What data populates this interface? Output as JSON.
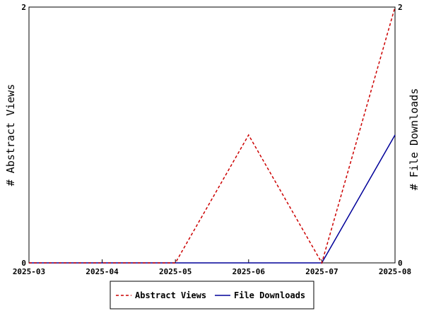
{
  "chart_data": {
    "type": "line",
    "x": [
      "2025-03",
      "2025-04",
      "2025-05",
      "2025-06",
      "2025-07",
      "2025-08"
    ],
    "series": [
      {
        "name": "Abstract Views",
        "values": [
          0,
          0,
          0,
          1,
          0,
          2
        ],
        "color": "#cc0000",
        "style": "dashed",
        "axis": "left"
      },
      {
        "name": "File Downloads",
        "values": [
          0,
          0,
          0,
          0,
          0,
          1
        ],
        "color": "#000099",
        "style": "solid",
        "axis": "right"
      }
    ],
    "ylabel_left": "# Abstract Views",
    "ylabel_right": "# File Downloads",
    "ylim_left": [
      0,
      2
    ],
    "ylim_right": [
      0,
      2
    ],
    "yticks_left": [
      "0",
      "2"
    ],
    "yticks_right": [
      "0",
      "2"
    ],
    "grid": false,
    "legend_position": "bottom-center"
  }
}
